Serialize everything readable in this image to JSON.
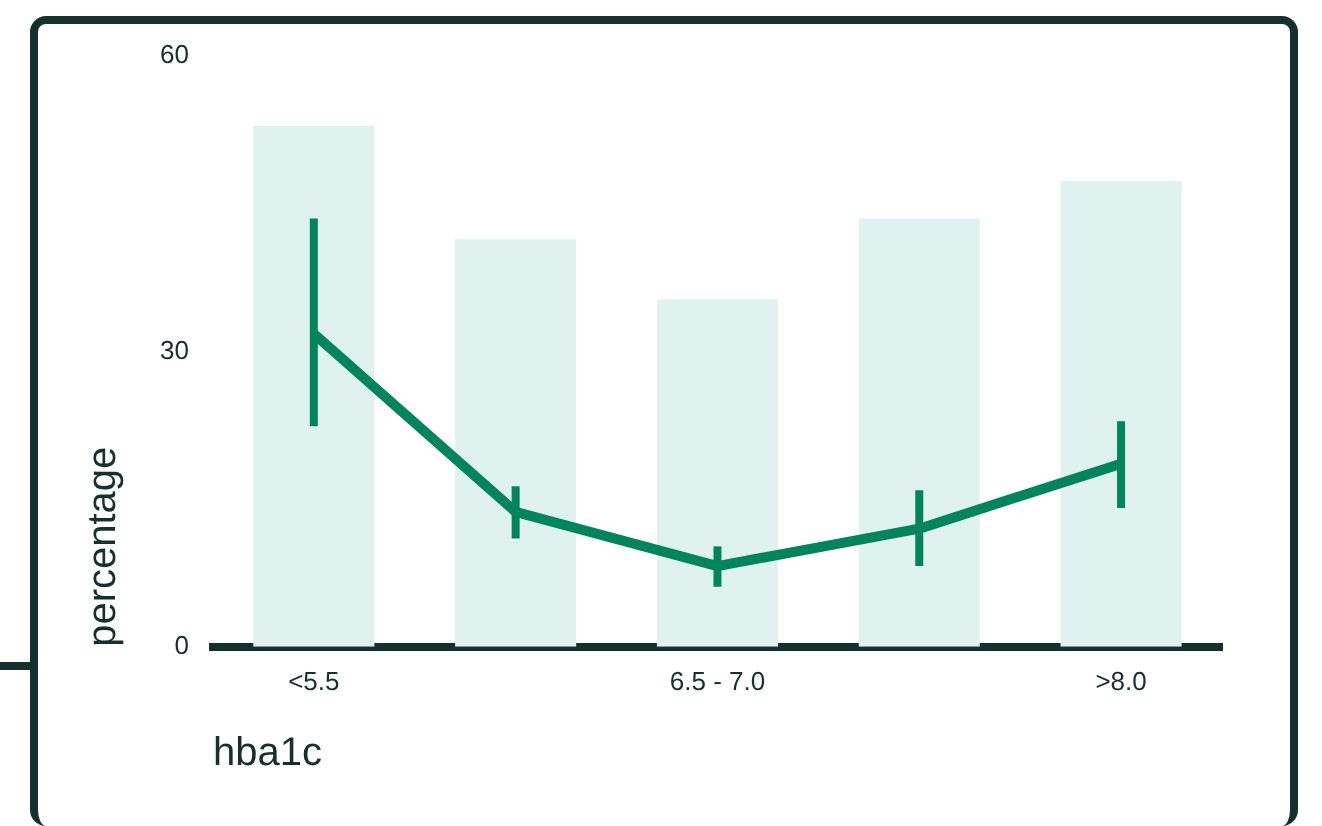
{
  "chart_data": {
    "type": "bar",
    "xlabel": "hba1c",
    "ylabel": "percentage",
    "categories": [
      "<5.5",
      null,
      "6.5 - 7.0",
      null,
      ">8.0"
    ],
    "ylim": [
      0,
      60
    ],
    "yticks": [
      0,
      30,
      60
    ],
    "marker": "none",
    "series": [
      {
        "color": "#dff2ef",
        "values": [
          52.9,
          41.4,
          35.3,
          43.5,
          47.3
        ]
      },
      {
        "type": "line",
        "color": "#00845c",
        "values": [
          31.8,
          13.7,
          8.2,
          12.0,
          18.6
        ],
        "errors": [
          [
            22.4,
            43.5
          ],
          [
            11.0,
            16.3
          ],
          [
            6.1,
            10.2
          ],
          [
            8.2,
            15.9
          ],
          [
            14.1,
            22.9
          ]
        ]
      }
    ]
  }
}
